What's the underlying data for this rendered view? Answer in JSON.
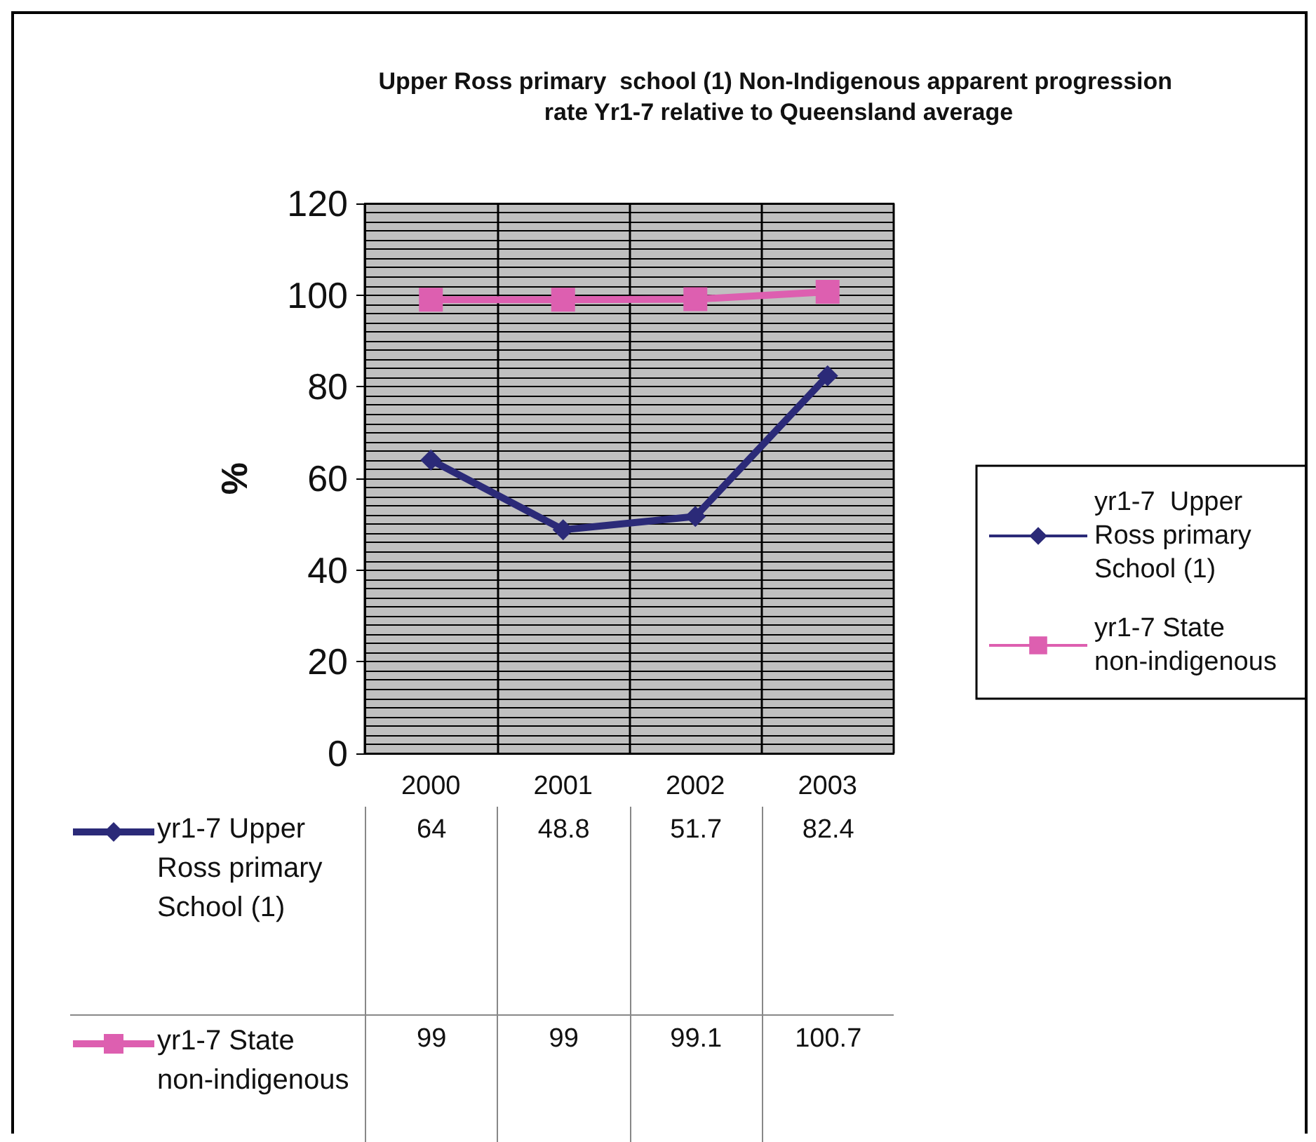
{
  "chart_data": {
    "type": "line",
    "title": "Upper Ross primary  school (1) Non-Indigenous apparent progression rate Yr1-7 relative to Queensland average",
    "ylabel": "%",
    "categories": [
      "2000",
      "2001",
      "2002",
      "2003"
    ],
    "series": [
      {
        "name": "yr1-7  Upper Ross primary School (1)",
        "color": "#2b2a78",
        "marker": "diamond",
        "values": [
          64,
          48.8,
          51.7,
          82.4
        ]
      },
      {
        "name": "yr1-7 State non-indigenous",
        "color": "#dd5fb0",
        "marker": "square",
        "values": [
          99,
          99,
          99.1,
          100.7
        ]
      }
    ],
    "ylim": [
      0,
      120
    ],
    "yticks": [
      0,
      20,
      40,
      60,
      80,
      100,
      120
    ],
    "grid": true,
    "legend": "right",
    "data_labels": true
  }
}
